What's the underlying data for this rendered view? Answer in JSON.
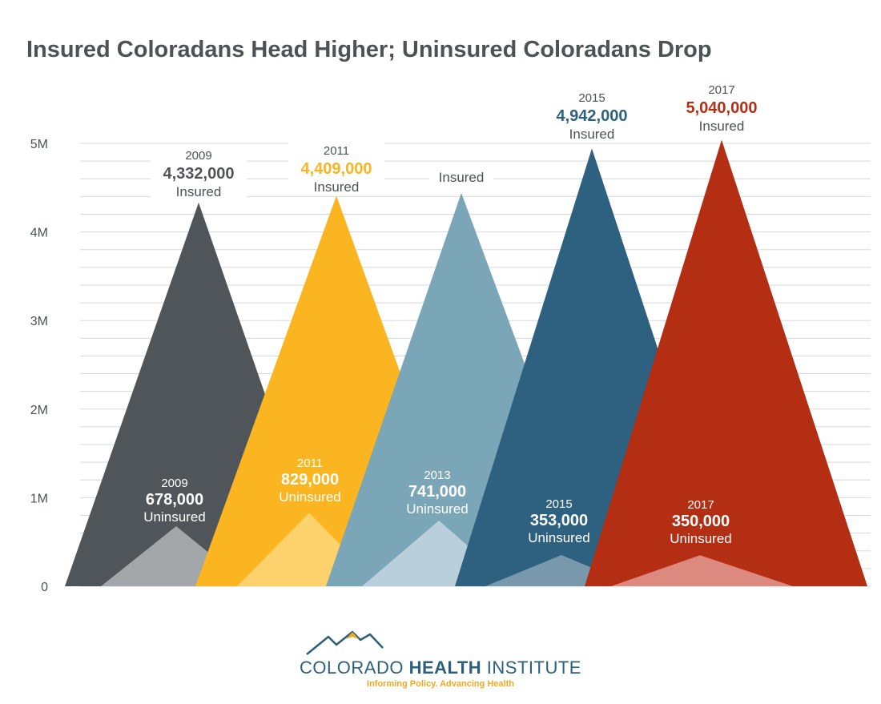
{
  "colors": {
    "c2009": "#4f5558",
    "c2011": "#fbb520",
    "c2013": "#7ba6b8",
    "c2015": "#2d617f",
    "c2017": "#b42e14",
    "u2009": "#a4a7a9",
    "u2011": "#fdd26c",
    "u2013": "#b9d0dc",
    "u2015": "#7898ac",
    "u2017": "#dc8a80",
    "label_2009": "#4f5558",
    "label_2011": "#fbb520",
    "label_2015": "#2d617f",
    "label_2017": "#b42e14"
  },
  "chart_data": {
    "type": "area",
    "title": "Insured Coloradans Head Higher; Uninsured Coloradans Drop",
    "xlabel": "",
    "ylabel": "",
    "ylim": [
      0,
      5000000
    ],
    "yticks": [
      {
        "value": 0,
        "label": "0"
      },
      {
        "value": 1000000,
        "label": "1M"
      },
      {
        "value": 2000000,
        "label": "2M"
      },
      {
        "value": 3000000,
        "label": "3M"
      },
      {
        "value": 4000000,
        "label": "4M"
      },
      {
        "value": 5000000,
        "label": "5M"
      }
    ],
    "grid": true,
    "categories": [
      "2009",
      "2011",
      "2013",
      "2015",
      "2017"
    ],
    "series": [
      {
        "name": "Insured",
        "values": [
          4332000,
          4409000,
          4440000,
          4942000,
          5040000
        ]
      },
      {
        "name": "Uninsured",
        "values": [
          678000,
          829000,
          741000,
          353000,
          350000
        ]
      }
    ],
    "insured_labels": [
      {
        "year": "2009",
        "value": "4,332,000",
        "word": "Insured"
      },
      {
        "year": "2011",
        "value": "4,409,000",
        "word": "Insured"
      },
      {
        "year": "",
        "value": "",
        "word": "Insured"
      },
      {
        "year": "2015",
        "value": "4,942,000",
        "word": "Insured"
      },
      {
        "year": "2017",
        "value": "5,040,000",
        "word": "Insured"
      }
    ],
    "uninsured_labels": [
      {
        "year": "2009",
        "value": "678,000",
        "word": "Uninsured"
      },
      {
        "year": "2011",
        "value": "829,000",
        "word": "Uninsured"
      },
      {
        "year": "2013",
        "value": "741,000",
        "word": "Uninsured"
      },
      {
        "year": "2015",
        "value": "353,000",
        "word": "Uninsured"
      },
      {
        "year": "2017",
        "value": "350,000",
        "word": "Uninsured"
      }
    ]
  },
  "logo": {
    "name_part1": "COLORADO ",
    "name_part2": "HEALTH",
    "name_part3": " INSTITUTE",
    "tagline": "Informing Policy. Advancing Health"
  }
}
